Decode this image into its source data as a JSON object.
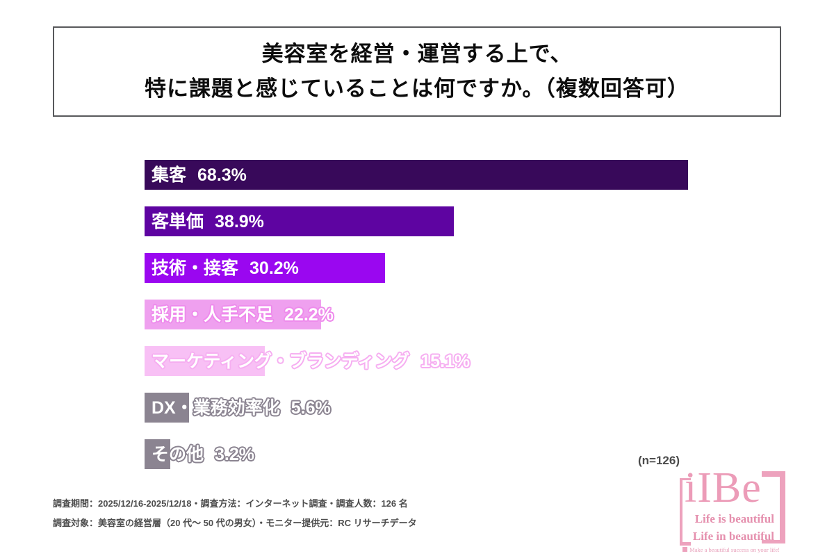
{
  "title": {
    "line1": "美容室を経営・運営する上で、",
    "line2": "特に課題と感じていることは何ですか。（複数回答可）"
  },
  "chart_data": {
    "type": "bar",
    "orientation": "horizontal",
    "title": "美容室を経営・運営する上で、特に課題と感じていることは何ですか。（複数回答可）",
    "categories": [
      "集客",
      "客単価",
      "技術・接客",
      "採用・人手不足",
      "マーケティング・ブランディング",
      "DX・業務効率化",
      "その他"
    ],
    "values": [
      68.3,
      38.9,
      30.2,
      22.2,
      15.1,
      5.6,
      3.2
    ],
    "unit": "%",
    "xlim": [
      0,
      100
    ],
    "grid": false,
    "legend": "none",
    "sample_label": "(n=126)",
    "sample_size": 126,
    "bars": [
      {
        "label": "集客",
        "value": 68.3,
        "display": "68.3%",
        "color": "#38095a",
        "outline": null
      },
      {
        "label": "客単価",
        "value": 38.9,
        "display": "38.9%",
        "color": "#5e04a1",
        "outline": null
      },
      {
        "label": "技術・接客",
        "value": 30.2,
        "display": "30.2%",
        "color": "#9a07f0",
        "outline": null
      },
      {
        "label": "採用・人手不足",
        "value": 22.2,
        "display": "22.2%",
        "color": "#efa0ef",
        "outline": "#ee8bec"
      },
      {
        "label": "マーケティング・ブランディング",
        "value": 15.1,
        "display": "15.1%",
        "color": "#f8c0f5",
        "outline": "#f6aef1"
      },
      {
        "label": "DX・業務効率化",
        "value": 5.6,
        "display": "5.6%",
        "color": "#8b8491",
        "outline": "#8b8491"
      },
      {
        "label": "その他",
        "value": 3.2,
        "display": "3.2%",
        "color": "#8b8491",
        "outline": "#8b8491"
      }
    ]
  },
  "footer": {
    "line1": "調査期間：2025/12/16-2025/12/18・調査方法：インターネット調査・調査人数：126 名",
    "line2": "調査対象：美容室の経営層（20 代〜 50 代の男女）・モニター提供元：RC リサーチデータ"
  },
  "logo": {
    "wordmark": "iIBe",
    "line1": "Life is beautiful",
    "line2": "Life in beautiful",
    "tagline": "Make a beautiful success on your life!",
    "brand_color": "#eda2bd"
  }
}
